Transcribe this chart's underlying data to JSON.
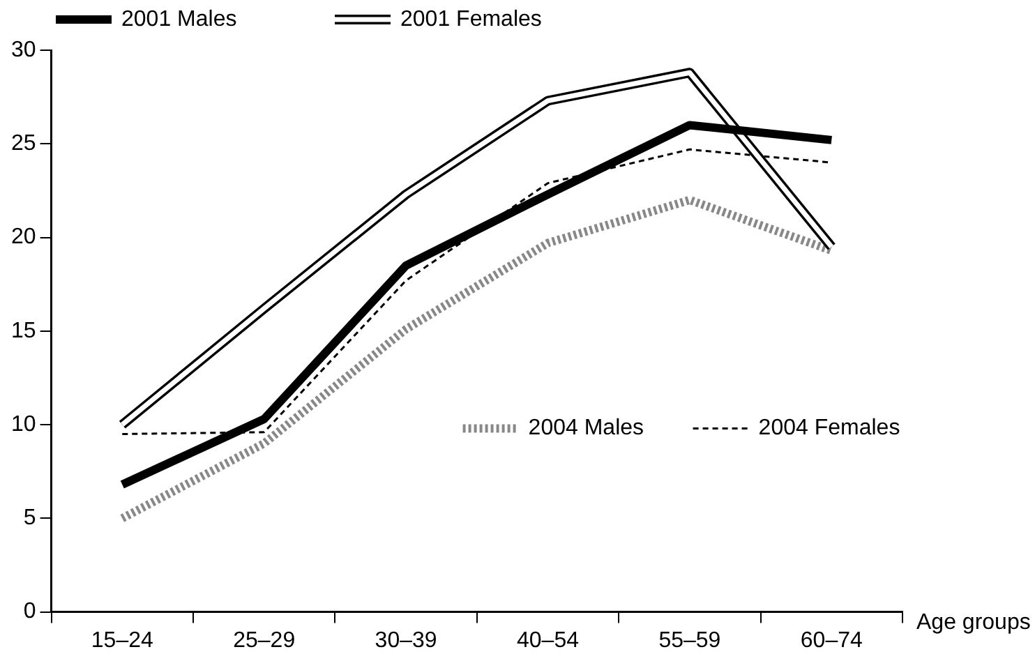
{
  "chart_data": {
    "type": "line",
    "xlabel": "Age groups",
    "categories": [
      "15–24",
      "25–29",
      "30–39",
      "40–54",
      "55–59",
      "60–74"
    ],
    "series": [
      {
        "name": "2001 Males",
        "color": "#000000",
        "line_style": "solid",
        "values": [
          6.8,
          10.3,
          18.5,
          22.3,
          26.0,
          25.2
        ]
      },
      {
        "name": "2001 Females",
        "color": "#000000",
        "line_style": "solid",
        "values": [
          10.0,
          16.2,
          22.3,
          27.3,
          28.8,
          19.5
        ]
      },
      {
        "name": "2004 Males",
        "color": "#888888",
        "line_style": "dotted",
        "values": [
          5.0,
          9.0,
          15.1,
          19.7,
          22.0,
          19.3
        ]
      },
      {
        "name": "2004 Females",
        "color": "#000000",
        "line_style": "dashed",
        "values": [
          9.5,
          9.6,
          17.7,
          22.9,
          24.7,
          24.0
        ]
      }
    ],
    "ylim": [
      0,
      30
    ],
    "yticks": [
      0,
      5,
      10,
      15,
      20,
      25,
      30
    ],
    "grid": false,
    "legend": "top left",
    "marker": "none"
  }
}
